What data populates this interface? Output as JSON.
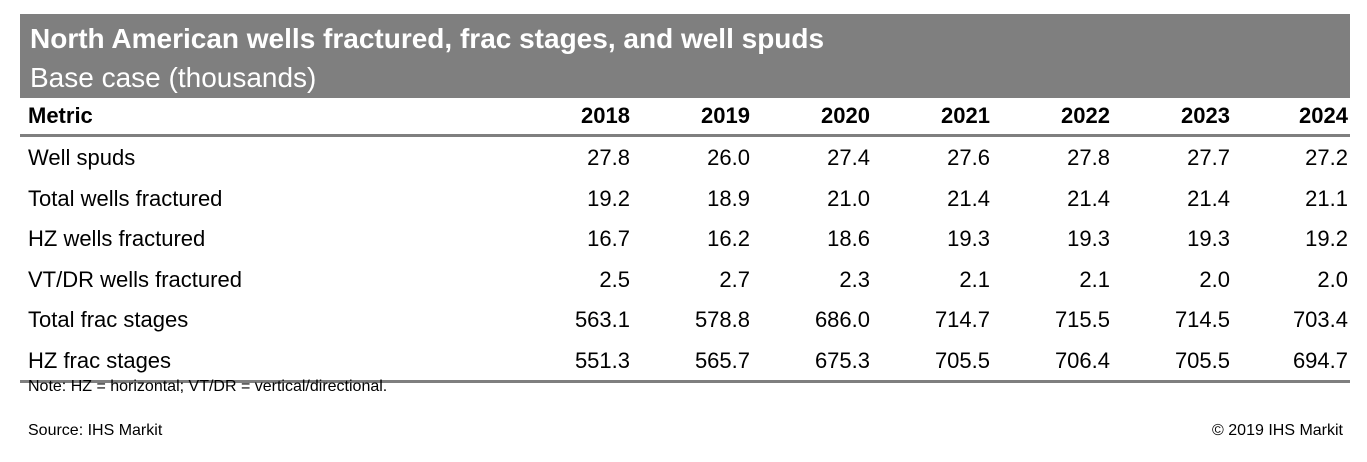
{
  "chart_data": {
    "type": "table",
    "title": "North American wells fractured, frac stages, and well spuds",
    "subtitle": "Base case (thousands)",
    "header_metric": "Metric",
    "years": [
      "2018",
      "2019",
      "2020",
      "2021",
      "2022",
      "2023",
      "2024"
    ],
    "rows": [
      {
        "label": "Well spuds",
        "values": [
          "27.8",
          "26.0",
          "27.4",
          "27.6",
          "27.8",
          "27.7",
          "27.2"
        ]
      },
      {
        "label": "Total wells fractured",
        "values": [
          "19.2",
          "18.9",
          "21.0",
          "21.4",
          "21.4",
          "21.4",
          "21.1"
        ]
      },
      {
        "label": "HZ wells fractured",
        "values": [
          "16.7",
          "16.2",
          "18.6",
          "19.3",
          "19.3",
          "19.3",
          "19.2"
        ]
      },
      {
        "label": "VT/DR wells fractured",
        "values": [
          "2.5",
          "2.7",
          "2.3",
          "2.1",
          "2.1",
          "2.0",
          "2.0"
        ]
      },
      {
        "label": "Total frac stages",
        "values": [
          "563.1",
          "578.8",
          "686.0",
          "714.7",
          "715.5",
          "714.5",
          "703.4"
        ]
      },
      {
        "label": "HZ frac stages",
        "values": [
          "551.3",
          "565.7",
          "675.3",
          "705.5",
          "706.4",
          "705.5",
          "694.7"
        ]
      }
    ],
    "note": "Note: HZ = horizontal; VT/DR = vertical/directional.",
    "source": "Source: IHS Markit",
    "copyright": "© 2019 IHS Markit"
  },
  "colors": {
    "title_band": "#7f7f7f",
    "rule": "#7f7f7f"
  }
}
